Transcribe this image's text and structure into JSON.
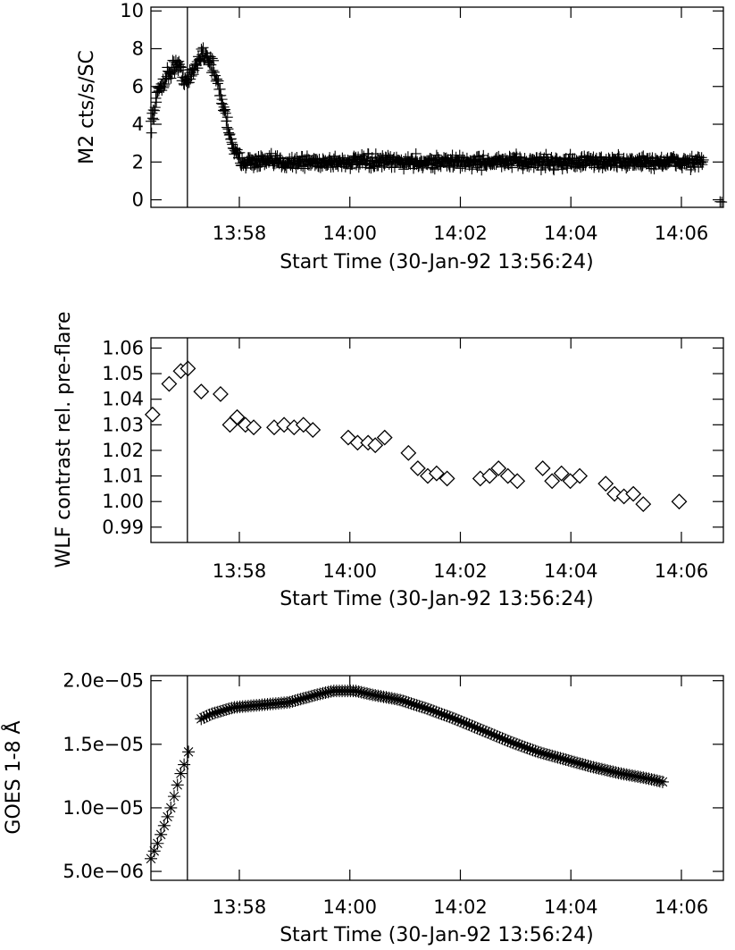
{
  "chart_data": [
    {
      "type": "scatter",
      "marker": "plus",
      "ylabel": "M2 cts/s/SC",
      "xlabel": "Start Time (30-Jan-92 13:56:24)",
      "xlim_min": [
        0,
        10.36
      ],
      "ylim": [
        -0.4,
        10.2
      ],
      "yticks": [
        0,
        2,
        4,
        6,
        8,
        10
      ],
      "xticks": [
        {
          "min": 1.6,
          "label": "13:58"
        },
        {
          "min": 3.6,
          "label": "14:00"
        },
        {
          "min": 5.6,
          "label": "14:02"
        },
        {
          "min": 7.6,
          "label": "14:04"
        },
        {
          "min": 9.6,
          "label": "14:06"
        }
      ],
      "marker_line_min": 0.66,
      "profile": [
        [
          0.0,
          4.0
        ],
        [
          0.05,
          4.6
        ],
        [
          0.15,
          5.9
        ],
        [
          0.3,
          6.6
        ],
        [
          0.45,
          7.2
        ],
        [
          0.55,
          6.8
        ],
        [
          0.66,
          6.2
        ],
        [
          0.8,
          7.0
        ],
        [
          0.92,
          7.8
        ],
        [
          1.0,
          7.7
        ],
        [
          1.1,
          7.2
        ],
        [
          1.2,
          6.2
        ],
        [
          1.3,
          5.1
        ],
        [
          1.42,
          3.6
        ],
        [
          1.52,
          2.5
        ],
        [
          1.62,
          2.1
        ],
        [
          1.8,
          2.0
        ],
        [
          10.0,
          2.0
        ]
      ],
      "point_step_min": 0.011,
      "noise": 0.35,
      "tail_marks": [
        [
          10.3,
          -0.1
        ],
        [
          10.33,
          -0.12
        ]
      ]
    },
    {
      "type": "scatter",
      "marker": "diamond",
      "ylabel": "WLF contrast rel. pre-flare",
      "xlabel": "Start Time (30-Jan-92 13:56:24)",
      "xlim_min": [
        0,
        10.36
      ],
      "ylim": [
        0.984,
        1.064
      ],
      "yticks": [
        0.99,
        1.0,
        1.01,
        1.02,
        1.03,
        1.04,
        1.05,
        1.06
      ],
      "ytick_labels": [
        "0.99",
        "1.00",
        "1.01",
        "1.02",
        "1.03",
        "1.04",
        "1.05",
        "1.06"
      ],
      "xticks": [
        {
          "min": 1.6,
          "label": "13:58"
        },
        {
          "min": 3.6,
          "label": "14:00"
        },
        {
          "min": 5.6,
          "label": "14:02"
        },
        {
          "min": 7.6,
          "label": "14:04"
        },
        {
          "min": 9.6,
          "label": "14:06"
        }
      ],
      "marker_line_min": 0.66,
      "points": [
        [
          0.03,
          1.034
        ],
        [
          0.33,
          1.046
        ],
        [
          0.54,
          1.051
        ],
        [
          0.67,
          1.052
        ],
        [
          0.91,
          1.043
        ],
        [
          1.26,
          1.042
        ],
        [
          1.43,
          1.03
        ],
        [
          1.56,
          1.033
        ],
        [
          1.71,
          1.03
        ],
        [
          1.86,
          1.029
        ],
        [
          2.23,
          1.029
        ],
        [
          2.41,
          1.03
        ],
        [
          2.59,
          1.029
        ],
        [
          2.76,
          1.03
        ],
        [
          2.93,
          1.028
        ],
        [
          3.57,
          1.025
        ],
        [
          3.74,
          1.023
        ],
        [
          3.93,
          1.023
        ],
        [
          4.06,
          1.022
        ],
        [
          4.23,
          1.025
        ],
        [
          4.66,
          1.019
        ],
        [
          4.83,
          1.013
        ],
        [
          5.01,
          1.01
        ],
        [
          5.17,
          1.011
        ],
        [
          5.36,
          1.009
        ],
        [
          5.96,
          1.009
        ],
        [
          6.13,
          1.01
        ],
        [
          6.29,
          1.013
        ],
        [
          6.46,
          1.01
        ],
        [
          6.63,
          1.008
        ],
        [
          7.09,
          1.013
        ],
        [
          7.26,
          1.008
        ],
        [
          7.43,
          1.011
        ],
        [
          7.59,
          1.008
        ],
        [
          7.76,
          1.01
        ],
        [
          8.23,
          1.007
        ],
        [
          8.39,
          1.003
        ],
        [
          8.56,
          1.002
        ],
        [
          8.73,
          1.003
        ],
        [
          8.91,
          0.999
        ],
        [
          9.56,
          1.0
        ]
      ]
    },
    {
      "type": "scatter",
      "marker": "asterisk",
      "ylabel": "GOES 1-8 Å",
      "xlabel": "Start Time (30-Jan-92 13:56:24)",
      "xlim_min": [
        0,
        10.36
      ],
      "ylim": [
        4.3e-06,
        2.04e-05
      ],
      "yticks": [
        5e-06,
        1e-05,
        1.5e-05,
        2e-05
      ],
      "ytick_labels": [
        "5.0e−06",
        "1.0e−05",
        "1.5e−05",
        "2.0e−05"
      ],
      "xticks": [
        {
          "min": 1.6,
          "label": "13:58"
        },
        {
          "min": 3.6,
          "label": "14:00"
        },
        {
          "min": 5.6,
          "label": "14:02"
        },
        {
          "min": 7.6,
          "label": "14:04"
        },
        {
          "min": 9.6,
          "label": "14:06"
        }
      ],
      "marker_line_min": 0.66,
      "rise_points": [
        [
          0.0,
          6e-06
        ],
        [
          0.06,
          6.6e-06
        ],
        [
          0.12,
          7.2e-06
        ],
        [
          0.18,
          7.9e-06
        ],
        [
          0.24,
          8.6e-06
        ],
        [
          0.3,
          9.3e-06
        ],
        [
          0.36,
          1e-05
        ],
        [
          0.42,
          1.09e-05
        ],
        [
          0.48,
          1.18e-05
        ],
        [
          0.54,
          1.27e-05
        ],
        [
          0.6,
          1.34e-05
        ],
        [
          0.68,
          1.44e-05
        ]
      ],
      "decay_profile": [
        [
          0.91,
          1.7e-05
        ],
        [
          1.1,
          1.74e-05
        ],
        [
          1.5,
          1.79e-05
        ],
        [
          2.0,
          1.81e-05
        ],
        [
          2.5,
          1.83e-05
        ],
        [
          3.0,
          1.89e-05
        ],
        [
          3.3,
          1.92e-05
        ],
        [
          3.7,
          1.92e-05
        ],
        [
          4.0,
          1.89e-05
        ],
        [
          4.5,
          1.85e-05
        ],
        [
          5.0,
          1.78e-05
        ],
        [
          5.5,
          1.7e-05
        ],
        [
          6.0,
          1.61e-05
        ],
        [
          6.5,
          1.52e-05
        ],
        [
          7.0,
          1.44e-05
        ],
        [
          7.5,
          1.38e-05
        ],
        [
          8.0,
          1.32e-05
        ],
        [
          8.5,
          1.27e-05
        ],
        [
          9.0,
          1.23e-05
        ],
        [
          9.3,
          1.2e-05
        ]
      ],
      "point_step_min": 0.05
    }
  ]
}
